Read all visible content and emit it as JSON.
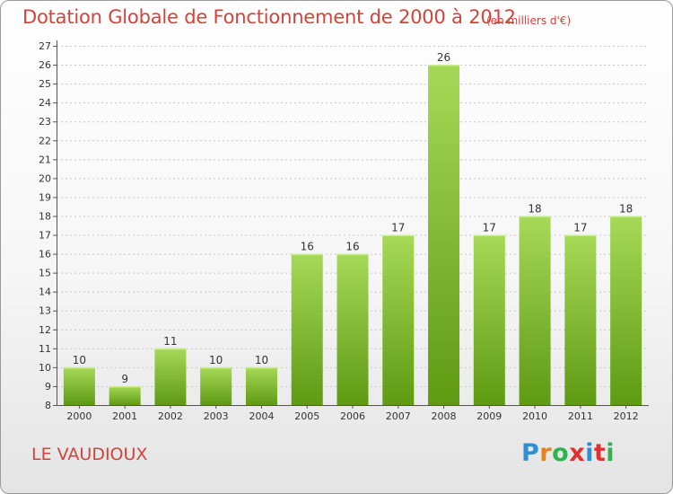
{
  "title": "Dotation Globale de Fonctionnement de 2000 à 2012",
  "subtitle": "(en milliers d'€)",
  "commune": "LE VAUDIOUX",
  "logo": {
    "text": "Proxiti",
    "colors": [
      "#2f8fd6",
      "#e8821e",
      "#2fb34a",
      "#e2312d",
      "#2f8fd6",
      "#e2312d",
      "#2fb34a"
    ]
  },
  "colors": {
    "title": "#d2433c",
    "bar_light": "#a6d957",
    "bar_dark": "#5f9a13",
    "gridline": "#c8c8c8"
  },
  "chart_data": {
    "type": "bar",
    "categories": [
      "2000",
      "2001",
      "2002",
      "2003",
      "2004",
      "2005",
      "2006",
      "2007",
      "2008",
      "2009",
      "2010",
      "2011",
      "2012"
    ],
    "values": [
      10,
      9,
      11,
      10,
      10,
      16,
      16,
      17,
      26,
      17,
      18,
      17,
      18
    ],
    "ylim": [
      8,
      27
    ],
    "yticks": [
      8,
      9,
      10,
      11,
      12,
      13,
      14,
      15,
      16,
      17,
      18,
      19,
      20,
      21,
      22,
      23,
      24,
      25,
      26,
      27
    ],
    "xlabel": "",
    "ylabel": "",
    "grid": true,
    "data_labels": true
  }
}
